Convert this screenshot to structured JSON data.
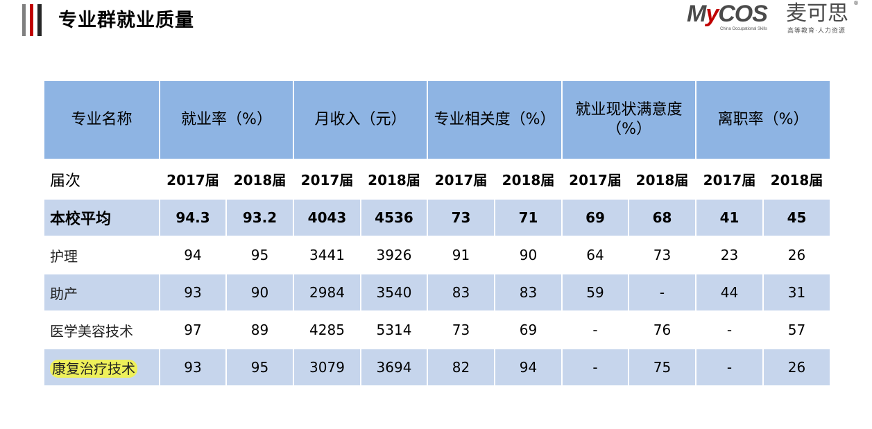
{
  "header": {
    "title": "专业群就业质量"
  },
  "logo": {
    "brand_pre": "M",
    "brand_y": "y",
    "brand_post": "COS",
    "cn_name": "麦可思",
    "registered": "®",
    "sub_en": "China Occupational Skills",
    "sub_cn": "高等教育·人力资源"
  },
  "table": {
    "columns": [
      "专业名称",
      "就业率（%）",
      "月收入（元）",
      "专业相关度（%）",
      "就业现状满意度（%）",
      "离职率（%）"
    ],
    "cohort_label": "届次",
    "years": [
      "2017届",
      "2018届",
      "2017届",
      "2018届",
      "2017届",
      "2018届",
      "2017届",
      "2018届",
      "2017届",
      "2018届"
    ],
    "rows": [
      {
        "name": "本校平均",
        "values": [
          "94.3",
          "93.2",
          "4043",
          "4536",
          "73",
          "71",
          "69",
          "68",
          "41",
          "45"
        ]
      },
      {
        "name": "护理",
        "values": [
          "94",
          "95",
          "3441",
          "3926",
          "91",
          "90",
          "64",
          "73",
          "23",
          "26"
        ]
      },
      {
        "name": "助产",
        "values": [
          "93",
          "90",
          "2984",
          "3540",
          "83",
          "83",
          "59",
          "-",
          "44",
          "31"
        ]
      },
      {
        "name": "医学美容技术",
        "values": [
          "97",
          "89",
          "4285",
          "5314",
          "73",
          "69",
          "-",
          "76",
          "-",
          "57"
        ]
      },
      {
        "name": "康复治疗技术",
        "values": [
          "93",
          "95",
          "3079",
          "3694",
          "82",
          "94",
          "-",
          "75",
          "-",
          "26"
        ]
      }
    ]
  },
  "colors": {
    "header_bg": "#8eb4e3",
    "shade_bg": "#c6d5ec",
    "highlight": "#eef05a",
    "accent_red": "#c00000"
  }
}
